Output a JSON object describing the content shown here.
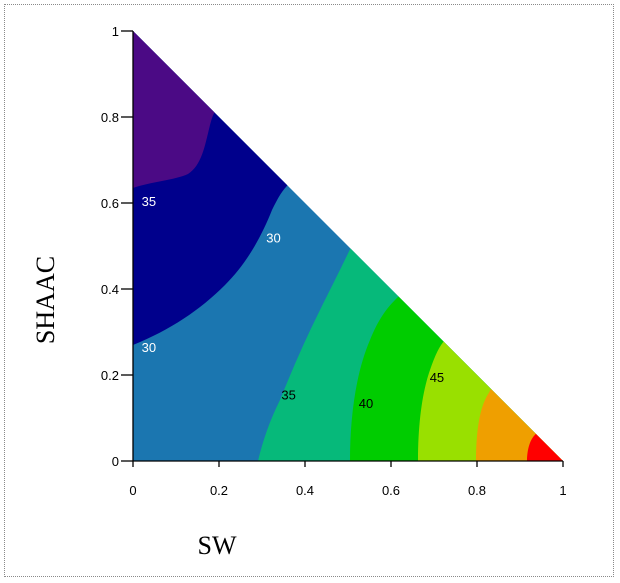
{
  "chart_data": {
    "type": "contour",
    "xlabel": "SW",
    "ylabel": "SHAAC",
    "xlim": [
      0,
      1
    ],
    "ylim": [
      0,
      1
    ],
    "x_ticks": [
      "0",
      "0.2",
      "0.4",
      "0.6",
      "0.8",
      "1"
    ],
    "y_ticks": [
      "0",
      "0.2",
      "0.4",
      "0.6",
      "0.8",
      "1"
    ],
    "domain": "ternary triangle: SW + SHAAC <= 1",
    "contour_labels": [
      {
        "text": "35",
        "x": 0.02,
        "y": 0.605
      },
      {
        "text": "30",
        "x": 0.31,
        "y": 0.52
      },
      {
        "text": "30",
        "x": 0.02,
        "y": 0.265
      },
      {
        "text": "35",
        "x": 0.345,
        "y": 0.155
      },
      {
        "text": "40",
        "x": 0.525,
        "y": 0.135
      },
      {
        "text": "45",
        "x": 0.69,
        "y": 0.195
      }
    ],
    "regions": [
      {
        "range": "<30",
        "color": "#4b0a85"
      },
      {
        "range": "30 (inner)",
        "color": "#00008c"
      },
      {
        "range": "30-35",
        "color": "#1b76b0"
      },
      {
        "range": "35-40",
        "color": "#06b97a"
      },
      {
        "range": "40-45",
        "color": "#00cc00"
      },
      {
        "range": "45-50",
        "color": "#99e000"
      },
      {
        "range": "50-55",
        "color": "#ef9f00"
      },
      {
        "range": ">55",
        "color": "#ff0000"
      }
    ]
  }
}
